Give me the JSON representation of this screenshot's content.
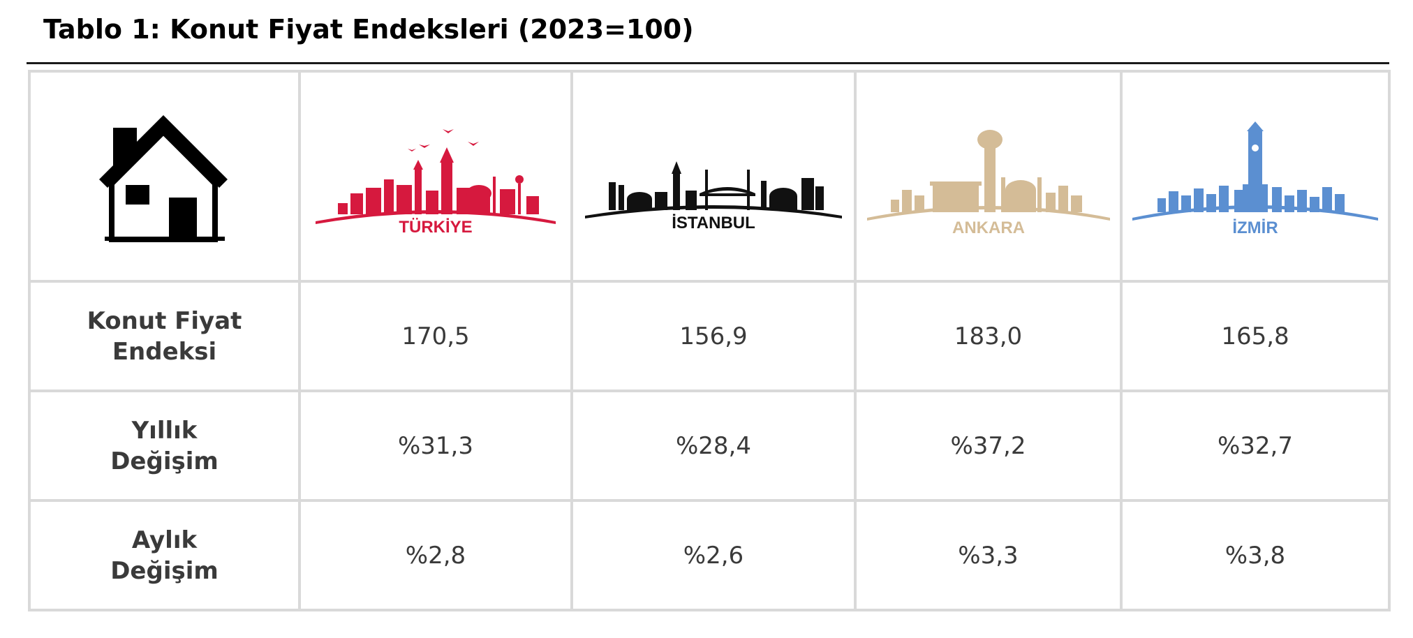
{
  "title": "Tablo 1: Konut Fiyat Endeksleri (2023=100)",
  "colors": {
    "turkiye": "#d6193e",
    "istanbul": "#111111",
    "ankara": "#d4bc97",
    "izmir": "#5b8fd1",
    "grid": "#d9d9d9",
    "text": "#3a3a3a"
  },
  "header": {
    "icon": "house-icon",
    "cities": [
      {
        "name": "TÜRKİYE",
        "icon": "turkiye-skyline-icon"
      },
      {
        "name": "İSTANBUL",
        "icon": "istanbul-skyline-icon"
      },
      {
        "name": "ANKARA",
        "icon": "ankara-skyline-icon"
      },
      {
        "name": "İZMİR",
        "icon": "izmir-skyline-icon"
      }
    ]
  },
  "rows": [
    {
      "label_line1": "Konut Fiyat",
      "label_line2": "Endeksi",
      "values": [
        "170,5",
        "156,9",
        "183,0",
        "165,8"
      ]
    },
    {
      "label_line1": "Yıllık",
      "label_line2": "Değişim",
      "values": [
        "%31,3",
        "%28,4",
        "%37,2",
        "%32,7"
      ]
    },
    {
      "label_line1": "Aylık",
      "label_line2": "Değişim",
      "values": [
        "%2,8",
        "%2,6",
        "%3,3",
        "%3,8"
      ]
    }
  ]
}
